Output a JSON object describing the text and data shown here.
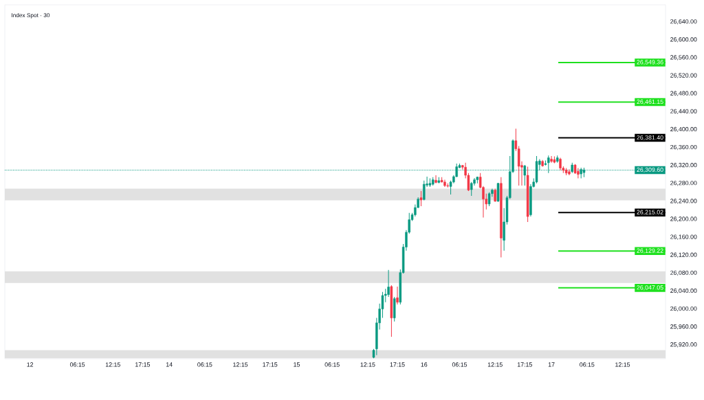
{
  "chart_data": {
    "type": "candlestick",
    "title": "Index Spot · 30",
    "categories": [
      null,
      null,
      null,
      null,
      null,
      null,
      null,
      null,
      "12",
      null,
      null,
      null,
      null,
      null,
      null,
      null,
      null,
      null,
      null,
      null,
      null,
      null,
      null,
      null,
      "06:15",
      null,
      null,
      null,
      null,
      null,
      null,
      null,
      null,
      null,
      null,
      null,
      "12:15",
      null,
      null,
      null,
      null,
      null,
      null,
      null,
      null,
      null,
      "17:15",
      null,
      null,
      null,
      null,
      null,
      null,
      null,
      null,
      "14",
      null,
      null,
      null,
      null,
      null,
      null,
      null,
      null,
      null,
      null,
      null,
      "06:15",
      null,
      null,
      null,
      null,
      null,
      null,
      null,
      null,
      null,
      null,
      null,
      "12:15",
      null,
      null,
      null,
      null,
      null,
      null,
      null,
      null,
      null,
      "17:15",
      null,
      null,
      null,
      null,
      null,
      null,
      null,
      null,
      "15",
      null,
      null,
      null,
      null,
      null,
      null,
      null,
      null,
      null,
      null,
      null,
      "06:15",
      null,
      null,
      null,
      null,
      null,
      null,
      null,
      null,
      null,
      null,
      null,
      "12:15",
      null,
      null,
      null,
      null,
      null,
      null,
      null,
      null,
      null,
      "17:15",
      null,
      null,
      null,
      null,
      null,
      null,
      null,
      null,
      "16",
      null,
      null,
      null,
      null,
      null,
      null,
      null,
      null,
      null,
      null,
      null,
      "06:15",
      null,
      null,
      null,
      null,
      null,
      null,
      null,
      null,
      null,
      null,
      null,
      "12:15",
      null,
      null,
      null,
      null,
      null,
      null,
      null,
      null,
      null,
      "17:15",
      null,
      null,
      null,
      null,
      null,
      null,
      null,
      null,
      "17",
      null,
      null,
      null,
      null,
      null,
      null,
      null,
      null,
      null,
      null,
      null,
      "06:15",
      null,
      null,
      null,
      null,
      null,
      null,
      null,
      null,
      null,
      null,
      null,
      "12:15",
      null,
      null,
      null,
      null,
      null,
      null,
      null,
      null,
      null,
      null,
      null,
      null,
      null,
      null
    ],
    "ohlc": [
      null,
      null,
      null,
      null,
      null,
      null,
      null,
      null,
      null,
      null,
      null,
      null,
      null,
      null,
      null,
      null,
      null,
      null,
      null,
      null,
      null,
      null,
      null,
      null,
      null,
      null,
      null,
      null,
      null,
      null,
      null,
      null,
      null,
      null,
      null,
      null,
      null,
      null,
      null,
      null,
      null,
      null,
      null,
      null,
      null,
      null,
      null,
      null,
      null,
      null,
      null,
      null,
      null,
      null,
      null,
      null,
      null,
      null,
      null,
      null,
      null,
      null,
      null,
      null,
      null,
      null,
      null,
      null,
      null,
      null,
      null,
      null,
      null,
      null,
      null,
      null,
      null,
      null,
      null,
      null,
      null,
      null,
      null,
      null,
      null,
      null,
      null,
      null,
      null,
      null,
      null,
      null,
      null,
      null,
      null,
      null,
      null,
      null,
      null,
      null,
      null,
      null,
      null,
      null,
      null,
      null,
      null,
      null,
      null,
      null,
      null,
      null,
      null,
      null,
      null,
      null,
      null,
      null,
      null,
      null,
      null,
      null,
      null,
      null,
      [
        25892,
        25911,
        25890,
        25908
      ],
      [
        25911,
        25980,
        25897,
        25969
      ],
      [
        25969,
        26012,
        25954,
        26000
      ],
      [
        26000,
        26038,
        25980,
        26030
      ],
      [
        26030,
        26045,
        26015,
        26033
      ],
      [
        26032,
        26087,
        26027,
        26049
      ],
      [
        26050,
        26053,
        25938,
        25980
      ],
      [
        25980,
        26027,
        25972,
        26023
      ],
      [
        26025,
        26050,
        26010,
        26015
      ],
      [
        26015,
        26088,
        26010,
        26081
      ],
      [
        26081,
        26145,
        26079,
        26138
      ],
      [
        26138,
        26176,
        26130,
        26171
      ],
      [
        26171,
        26214,
        26168,
        26199
      ],
      [
        26199,
        26214,
        26196,
        26210
      ],
      [
        26210,
        26233,
        26206,
        26226
      ],
      [
        26226,
        26249,
        26225,
        26245
      ],
      [
        26248,
        26263,
        26229,
        26243
      ],
      [
        26244,
        26286,
        26242,
        26278
      ],
      [
        26276,
        26295,
        26272,
        26279
      ],
      [
        26276,
        26291,
        26272,
        26280
      ],
      [
        26278,
        26294,
        26275,
        26288
      ],
      [
        26287,
        26298,
        26280,
        26282
      ],
      [
        26282,
        26294,
        26280,
        26286
      ],
      [
        26287,
        26294,
        26282,
        26283
      ],
      [
        26283,
        26288,
        26272,
        26275
      ],
      [
        26275,
        26280,
        26271,
        26274
      ],
      [
        26273,
        26286,
        26255,
        26283
      ],
      [
        26283,
        26298,
        26280,
        26295
      ],
      [
        26295,
        26324,
        26294,
        26317
      ],
      [
        26315,
        26324,
        26314,
        26320
      ],
      [
        26320,
        26321,
        26311,
        26316
      ],
      [
        26316,
        26326,
        26291,
        26298
      ],
      [
        26298,
        26303,
        26263,
        26265
      ],
      [
        26266,
        26283,
        26252,
        26280
      ],
      [
        26280,
        26292,
        26275,
        26288
      ],
      [
        26288,
        26295,
        26280,
        26294
      ],
      [
        26294,
        26303,
        26269,
        26271
      ],
      [
        26271,
        26274,
        26204,
        26245
      ],
      [
        26245,
        26257,
        26222,
        26234
      ],
      [
        26234,
        26260,
        26229,
        26257
      ],
      [
        26257,
        26268,
        26250,
        26265
      ],
      [
        26265,
        26268,
        26239,
        26240
      ],
      [
        26240,
        26281,
        26239,
        26280
      ],
      [
        26280,
        26294,
        26115,
        26158
      ],
      [
        26153,
        26225,
        26130,
        26194
      ],
      [
        26194,
        26252,
        26188,
        26248
      ],
      [
        26248,
        26341,
        26245,
        26306
      ],
      [
        26306,
        26378,
        26303,
        26375
      ],
      [
        26375,
        26402,
        26352,
        26357
      ],
      [
        26357,
        26363,
        26275,
        26318
      ],
      [
        26320,
        26329,
        26275,
        26316
      ],
      [
        26298,
        26321,
        26275,
        26319
      ],
      [
        26298,
        26317,
        26194,
        26206
      ],
      [
        26210,
        26278,
        26206,
        26273
      ],
      [
        26273,
        26291,
        26271,
        26283
      ],
      [
        26283,
        26341,
        26280,
        26329
      ],
      [
        26322,
        26334,
        26309,
        26330
      ],
      [
        26329,
        26332,
        26317,
        26319
      ],
      [
        26322,
        26331,
        26320,
        26324
      ],
      [
        26326,
        26342,
        26303,
        26337
      ],
      [
        26334,
        26341,
        26326,
        26329
      ],
      [
        26333,
        26340,
        26325,
        26327
      ],
      [
        26329,
        26342,
        26326,
        26337
      ],
      [
        26334,
        26337,
        26309,
        26314
      ],
      [
        26314,
        26318,
        26303,
        26309
      ],
      [
        26310,
        26314,
        26298,
        26303
      ],
      [
        26306,
        26311,
        26298,
        26301
      ],
      [
        26306,
        26326,
        26303,
        26321
      ],
      [
        26321,
        26323,
        26301,
        26303
      ],
      [
        26307,
        26314,
        26291,
        26300
      ],
      [
        26301,
        26315,
        26291,
        26311
      ],
      [
        26304,
        26315,
        26294,
        26310
      ],
      null,
      null,
      null,
      null,
      null,
      null,
      null,
      null,
      null,
      null,
      null,
      null,
      null,
      null,
      null,
      null,
      null,
      null,
      null,
      null,
      null,
      null,
      null,
      null,
      null,
      null,
      null
    ],
    "colors": [
      null,
      null,
      null,
      null,
      null,
      null,
      null,
      null,
      null,
      null,
      null,
      null,
      null,
      null,
      null,
      null,
      null,
      null,
      null,
      null,
      null,
      null,
      null,
      null,
      null,
      null,
      null,
      null,
      null,
      null,
      null,
      null,
      null,
      null,
      null,
      null,
      null,
      null,
      null,
      null,
      null,
      null,
      null,
      null,
      null,
      null,
      null,
      null,
      null,
      null,
      null,
      null,
      null,
      null,
      null,
      null,
      null,
      null,
      null,
      null,
      null,
      null,
      null,
      null,
      null,
      null,
      null,
      null,
      null,
      null,
      null,
      null,
      null,
      null,
      null,
      null,
      null,
      null,
      null,
      null,
      null,
      null,
      null,
      null,
      null,
      null,
      null,
      null,
      null,
      null,
      null,
      null,
      null,
      null,
      null,
      null,
      null,
      null,
      null,
      null,
      null,
      null,
      null,
      null,
      null,
      null,
      null,
      null,
      null,
      null,
      null,
      null,
      null,
      null,
      null,
      null,
      null,
      null,
      null,
      null,
      null,
      null,
      null,
      null,
      "#089981",
      "#089981",
      "#089981",
      "#089981",
      "#089981",
      "#089981",
      "#f23645",
      "#089981",
      "#f23645",
      "#089981",
      "#089981",
      "#089981",
      "#089981",
      "#089981",
      "#089981",
      "#089981",
      "#f23645",
      "#089981",
      "#089981",
      "#089981",
      "#089981",
      "#f23645",
      "#089981",
      "#f23645",
      "#f23645",
      "#f23645",
      "#089981",
      "#089981",
      "#089981",
      "#089981",
      "#f23645",
      "#f23645",
      "#f23645",
      "#089981",
      "#089981",
      "#089981",
      "#f23645",
      "#f23645",
      "#f23645",
      "#089981",
      "#089981",
      "#f23645",
      "#089981",
      "#f23645",
      "#089981",
      "#089981",
      "#089981",
      "#089981",
      "#f23645",
      "#f23645",
      "#f23645",
      "#089981",
      "#f23645",
      "#089981",
      "#089981",
      "#089981",
      "#089981",
      "#f23645",
      "#089981",
      "#089981",
      "#f23645",
      "#f23645",
      "#089981",
      "#f23645",
      "#f23645",
      "#f23645",
      "#f23645",
      "#089981",
      "#f23645",
      "#f23645",
      "#089981",
      "#089981",
      null,
      null,
      null,
      null,
      null,
      null,
      null,
      null,
      null,
      null,
      null,
      null,
      null,
      null,
      null,
      null,
      null,
      null,
      null,
      null,
      null,
      null,
      null,
      null,
      null,
      null,
      null
    ],
    "ylim": [
      25889,
      26678
    ],
    "yticks": [
      {
        "value": 25920,
        "label": "25,920.00"
      },
      {
        "value": 25960,
        "label": "25,960.00"
      },
      {
        "value": 26000,
        "label": "26,000.00"
      },
      {
        "value": 26040,
        "label": "26,040.00"
      },
      {
        "value": 26080,
        "label": "26,080.00"
      },
      {
        "value": 26120,
        "label": "26,120.00"
      },
      {
        "value": 26160,
        "label": "26,160.00"
      },
      {
        "value": 26200,
        "label": "26,200.00"
      },
      {
        "value": 26240,
        "label": "26,240.00"
      },
      {
        "value": 26280,
        "label": "26,280.00"
      },
      {
        "value": 26320,
        "label": "26,320.00"
      },
      {
        "value": 26360,
        "label": "26,360.00"
      },
      {
        "value": 26400,
        "label": "26,400.00"
      },
      {
        "value": 26440,
        "label": "26,440.00"
      },
      {
        "value": 26480,
        "label": "26,480.00"
      },
      {
        "value": 26520,
        "label": "26,520.00"
      },
      {
        "value": 26560,
        "label": "26,560.00"
      },
      {
        "value": 26600,
        "label": "26,600.00"
      },
      {
        "value": 26640,
        "label": "26,640.00"
      }
    ],
    "bands": [
      {
        "axis": "y",
        "from": 26242,
        "to": 26268,
        "color": "#e1e1e1"
      },
      {
        "axis": "y",
        "from": 26058,
        "to": 26084,
        "color": "#e1e1e1"
      },
      {
        "axis": "y",
        "from": 25890,
        "to": 25908,
        "color": "#e1e1e1"
      }
    ],
    "ref_lines": [
      {
        "axis": "y",
        "value": 26549.36,
        "label": "26,549.36",
        "color": "#1ee01e",
        "line_style": "solid"
      },
      {
        "axis": "y",
        "value": 26461.15,
        "label": "26,461.15",
        "color": "#1ee01e",
        "line_style": "solid"
      },
      {
        "axis": "y",
        "value": 26381.4,
        "label": "26,381.40",
        "color": "#000000",
        "line_style": "solid"
      },
      {
        "axis": "y",
        "value": 26309.6,
        "label": "26,309.60",
        "color": "#089981",
        "line_style": "dotted"
      },
      {
        "axis": "y",
        "value": 26215.02,
        "label": "26,215.02",
        "color": "#000000",
        "line_style": "solid"
      },
      {
        "axis": "y",
        "value": 26129.22,
        "label": "26,129.22",
        "color": "#1ee01e",
        "line_style": "solid"
      },
      {
        "axis": "y",
        "value": 26047.05,
        "label": "26,047.05",
        "color": "#1ee01e",
        "line_style": "solid"
      }
    ]
  }
}
